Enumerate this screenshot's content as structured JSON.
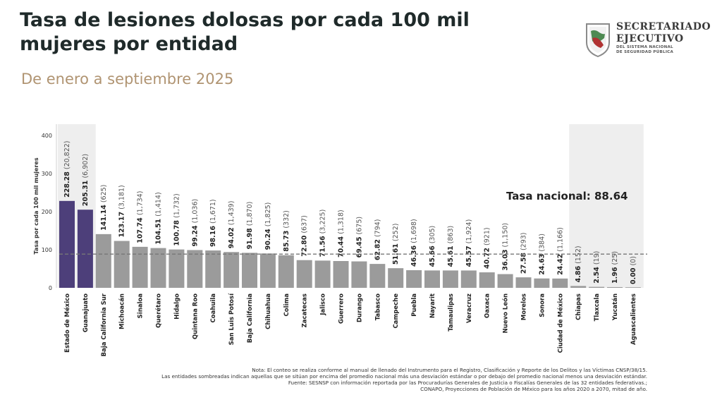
{
  "header": {
    "title": "Tasa de lesiones dolosas por cada 100 mil mujeres por entidad",
    "subtitle": "De enero a septiembre 2025"
  },
  "logo": {
    "line1": "SECRETARIADO",
    "line2": "EJECUTIVO",
    "line3": "DEL SISTEMA NACIONAL",
    "line4": "DE SEGURIDAD PÚBLICA"
  },
  "notes": {
    "line1": "Nota: El conteo se realiza conforme al manual de llenado del Instrumento para el Registro, Clasificación y Reporte de los Delitos y las Víctimas CNSP/38/15.",
    "line2": "Las entidades sombreadas indican aquellas que se sitúan por encima del promedio nacional más una desviación estándar o por debajo del promedio nacional menos una desviación estándar.",
    "line3": "Fuente: SESNSP con información reportada por las Procuradurías Generales de Justicia o Fiscalías Generales de las 32 entidades federativas.;",
    "line4": "CONAPO, Proyecciones de Población de México para los años 2020 a 2070, mitad de año."
  },
  "colors": {
    "highlight_bar": "#4d3f7a",
    "normal_bar": "#9b9b9b",
    "shade_band": "#eeeeee",
    "national_line": "#777777"
  },
  "chart_data": {
    "type": "bar",
    "title": "Tasa de lesiones dolosas por cada 100 mil mujeres por entidad",
    "ylabel": "Tasa por cada 100 mil mujeres",
    "ylim": [
      0,
      430
    ],
    "yticks": [
      "0",
      "100",
      "200",
      "300",
      "400"
    ],
    "reference_line": {
      "label": "Tasa nacional: 88.64",
      "value": 88.64
    },
    "categories": [
      "Estado de México",
      "Guanajuato",
      "Baja California Sur",
      "Michoacán",
      "Sinaloa",
      "Querétaro",
      "Hidalgo",
      "Quintana Roo",
      "Coahuila",
      "San Luis Potosí",
      "Baja California",
      "Chihuahua",
      "Colima",
      "Zacatecas",
      "Jalisco",
      "Guerrero",
      "Durango",
      "Tabasco",
      "Campeche",
      "Puebla",
      "Nayarit",
      "Tamaulipas",
      "Veracruz",
      "Oaxaca",
      "Nuevo León",
      "Morelos",
      "Sonora",
      "Ciudad de México",
      "Chiapas",
      "Tlaxcala",
      "Yucatán",
      "Aguascalientes"
    ],
    "values": [
      228.28,
      205.31,
      141.14,
      123.17,
      107.74,
      104.51,
      100.78,
      99.24,
      98.16,
      94.02,
      91.98,
      90.24,
      85.73,
      72.8,
      71.56,
      70.44,
      69.45,
      62.82,
      51.61,
      46.36,
      45.66,
      45.61,
      45.57,
      40.72,
      36.03,
      27.58,
      24.63,
      24.42,
      4.86,
      2.54,
      1.96,
      0.0
    ],
    "value_labels": [
      "228.28",
      "205.31",
      "141.14",
      "123.17",
      "107.74",
      "104.51",
      "100.78",
      "99.24",
      "98.16",
      "94.02",
      "91.98",
      "90.24",
      "85.73",
      "72.80",
      "71.56",
      "70.44",
      "69.45",
      "62.82",
      "51.61",
      "46.36",
      "45.66",
      "45.61",
      "45.57",
      "40.72",
      "36.03",
      "27.58",
      "24.63",
      "24.42",
      "4.86",
      "2.54",
      "1.96",
      "0.00"
    ],
    "counts": [
      "(20,822)",
      "(6,902)",
      "(625)",
      "(3,181)",
      "(1,734)",
      "(1,414)",
      "(1,732)",
      "(1,036)",
      "(1,671)",
      "(1,439)",
      "(1,870)",
      "(1,825)",
      "(332)",
      "(637)",
      "(3,225)",
      "(1,318)",
      "(675)",
      "(794)",
      "(252)",
      "(1,698)",
      "(305)",
      "(863)",
      "(1,924)",
      "(921)",
      "(1,150)",
      "(293)",
      "(384)",
      "(1,166)",
      "(152)",
      "(19)",
      "(25)",
      "(0)"
    ],
    "highlighted": [
      true,
      true,
      false,
      false,
      false,
      false,
      false,
      false,
      false,
      false,
      false,
      false,
      false,
      false,
      false,
      false,
      false,
      false,
      false,
      false,
      false,
      false,
      false,
      false,
      false,
      false,
      false,
      false,
      false,
      false,
      false,
      false
    ],
    "shaded": [
      true,
      true,
      false,
      false,
      false,
      false,
      false,
      false,
      false,
      false,
      false,
      false,
      false,
      false,
      false,
      false,
      false,
      false,
      false,
      false,
      false,
      false,
      false,
      false,
      false,
      false,
      false,
      false,
      true,
      true,
      true,
      true
    ]
  }
}
